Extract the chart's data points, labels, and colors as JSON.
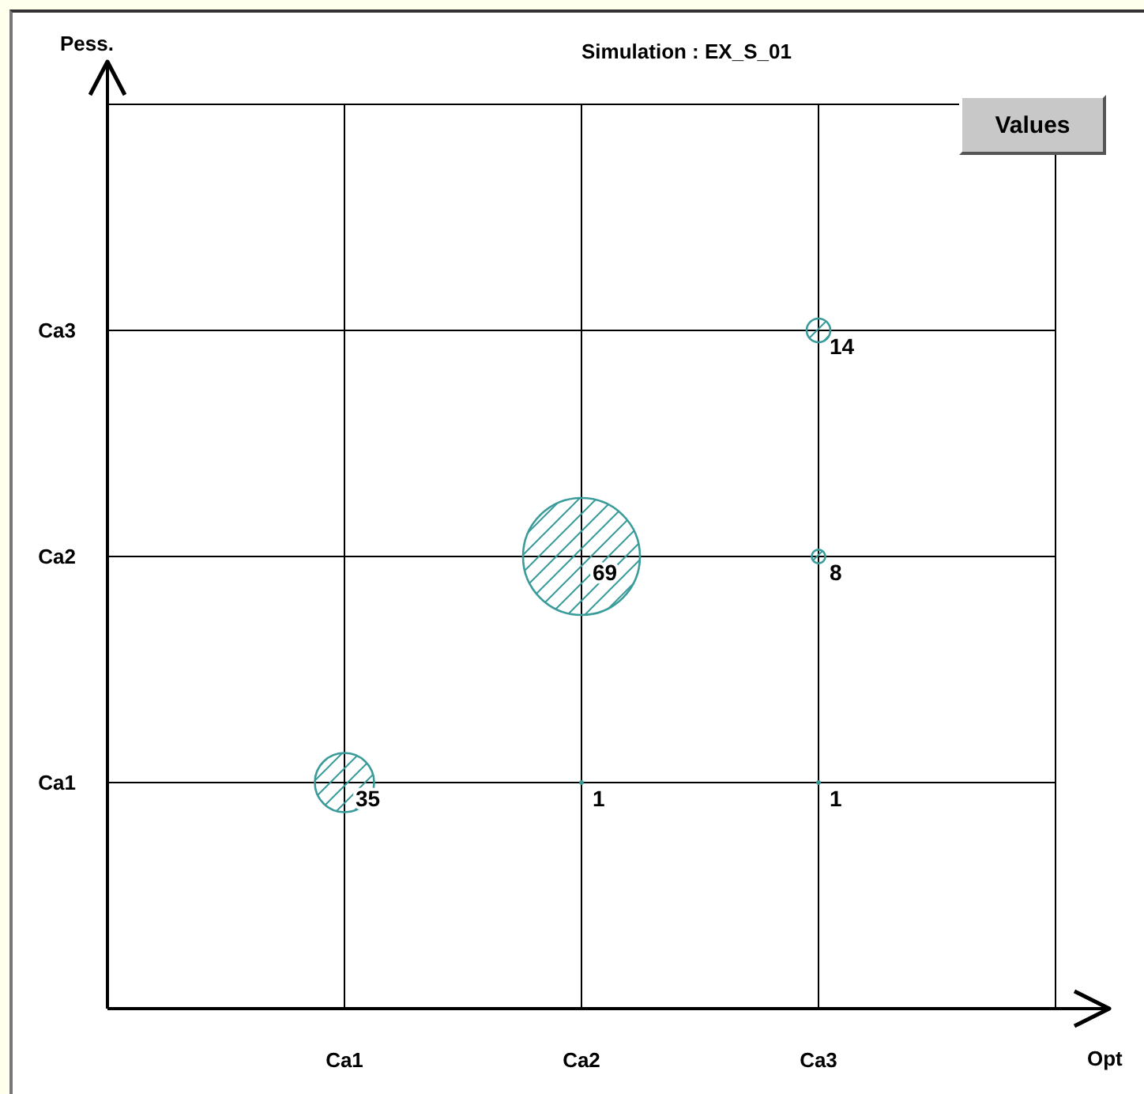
{
  "chart_data": {
    "type": "heatmap",
    "title": "Simulation : EX_S_01",
    "xlabel": "Opt",
    "ylabel": "Pess.",
    "annotations": [
      "Values"
    ],
    "categories": [
      "Ca1",
      "Ca2",
      "Ca3"
    ],
    "y_categories": [
      "Ca3",
      "Ca2",
      "Ca1"
    ],
    "cells": [
      [
        null,
        null,
        14
      ],
      [
        null,
        69,
        8
      ],
      [
        35,
        1,
        1
      ]
    ],
    "color": "#3a9b9b",
    "data_labels": true,
    "grid": true
  }
}
